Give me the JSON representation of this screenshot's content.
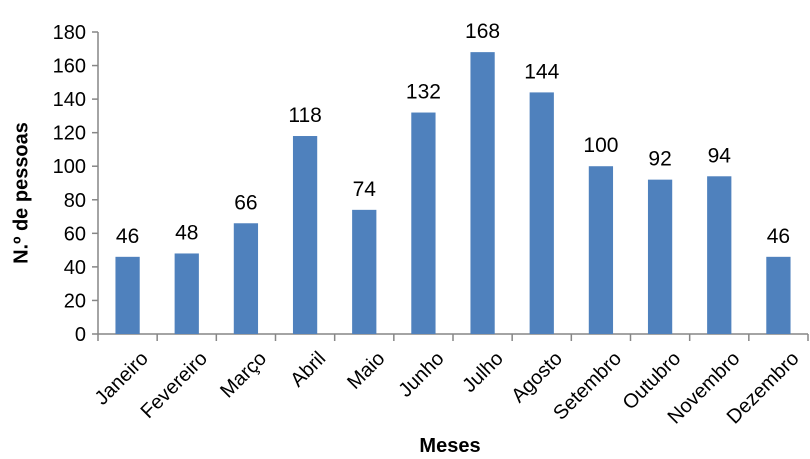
{
  "chart_data": {
    "type": "bar",
    "title": "",
    "xlabel": "Meses",
    "ylabel": "N.º de pessoas",
    "categories": [
      "Janeiro",
      "Fevereiro",
      "Março",
      "Abril",
      "Maio",
      "Junho",
      "Julho",
      "Agosto",
      "Setembro",
      "Outubro",
      "Novembro",
      "Dezembro"
    ],
    "values": [
      46,
      48,
      66,
      118,
      74,
      132,
      168,
      144,
      100,
      92,
      94,
      46
    ],
    "ylim": [
      0,
      180
    ],
    "yticks": [
      0,
      20,
      40,
      60,
      80,
      100,
      120,
      140,
      160,
      180
    ],
    "grid": false,
    "legend": "none",
    "bar_color": "#4F81BD",
    "axis_color": "#868686"
  }
}
